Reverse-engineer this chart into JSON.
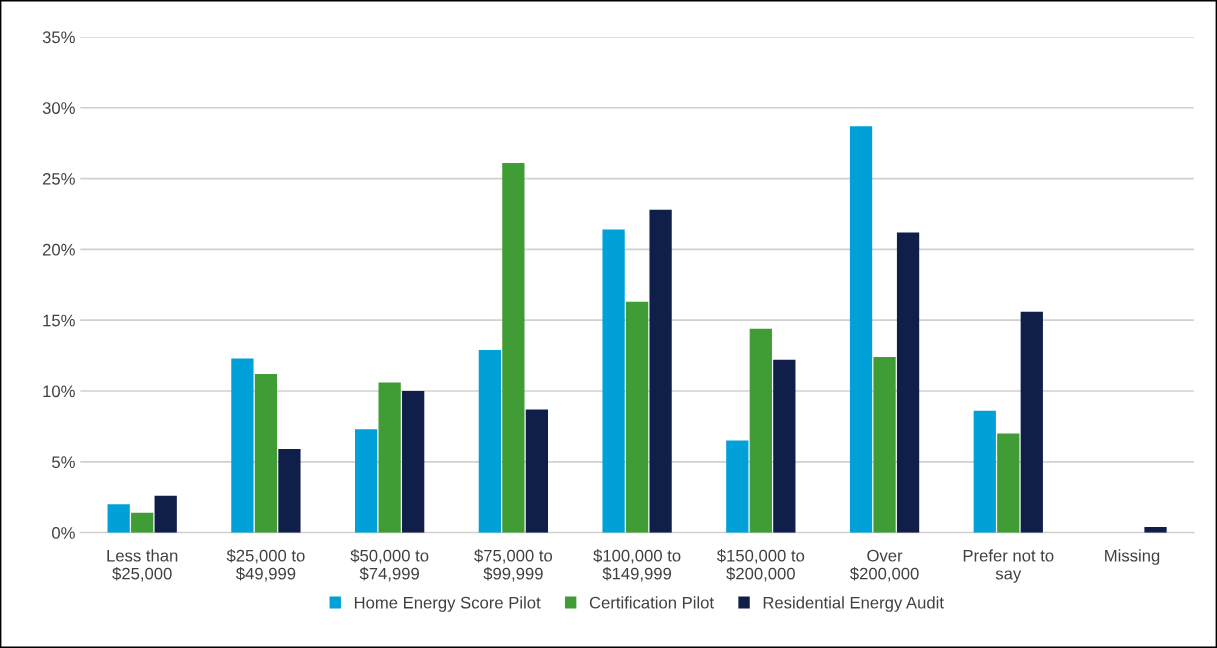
{
  "chart_data": {
    "type": "bar",
    "categories": [
      "Less than\n$25,000",
      "$25,000 to\n$49,999",
      "$50,000 to\n$74,999",
      "$75,000 to\n$99,999",
      "$100,000 to\n$149,999",
      "$150,000 to\n$200,000",
      "Over\n$200,000",
      "Prefer not to\nsay",
      "Missing"
    ],
    "series": [
      {
        "name": "Home Energy Score Pilot",
        "color": "#00a0d8",
        "values": [
          2.0,
          12.3,
          7.3,
          12.9,
          21.4,
          6.5,
          28.7,
          8.6,
          0
        ]
      },
      {
        "name": "Certification Pilot",
        "color": "#409c34",
        "values": [
          1.4,
          11.2,
          10.6,
          26.1,
          16.3,
          14.4,
          12.4,
          7.0,
          0
        ]
      },
      {
        "name": "Residential Energy Audit",
        "color": "#0f1f4a",
        "values": [
          2.6,
          5.9,
          10.0,
          8.7,
          22.8,
          12.2,
          21.2,
          15.6,
          0.4
        ]
      }
    ],
    "ylim": [
      0,
      35
    ],
    "yticks": [
      {
        "value": 0,
        "label": "0%"
      },
      {
        "value": 5,
        "label": "5%"
      },
      {
        "value": 10,
        "label": "10%"
      },
      {
        "value": 15,
        "label": "15%"
      },
      {
        "value": 20,
        "label": "20%"
      },
      {
        "value": 25,
        "label": "25%"
      },
      {
        "value": 30,
        "label": "30%"
      },
      {
        "value": 35,
        "label": "35%"
      }
    ],
    "grid": "y",
    "legend": "bottom"
  }
}
